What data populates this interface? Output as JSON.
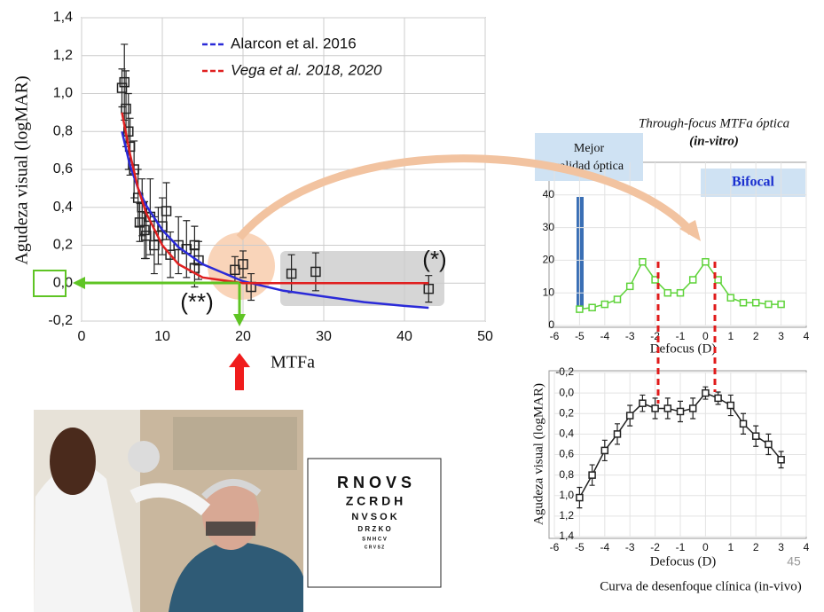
{
  "chart_data": [
    {
      "type": "scatter",
      "y_label": "Agudeza visual (logMAR)",
      "x_label": "MTFa",
      "xlim": [
        0,
        50
      ],
      "xticks": [
        0,
        10,
        20,
        30,
        40,
        50
      ],
      "ylim": [
        -0.2,
        1.4
      ],
      "yticks": [
        {
          "value": 1.4,
          "label": "1,4"
        },
        {
          "value": 1.2,
          "label": "1,2"
        },
        {
          "value": 1,
          "label": "1,0"
        },
        {
          "value": 0.8,
          "label": "0,8"
        },
        {
          "value": 0.6,
          "label": "0,6"
        },
        {
          "value": 0.4,
          "label": "0,4"
        },
        {
          "value": 0.2,
          "label": "0,2"
        },
        {
          "value": 0,
          "label": "0,0"
        },
        {
          "value": -0.2,
          "label": "-0,2"
        }
      ],
      "grid": true,
      "color": "#222",
      "x": [
        5,
        5.3,
        5.5,
        5.8,
        6,
        6.5,
        7,
        7.2,
        7.5,
        7.8,
        8,
        8.5,
        9,
        9.5,
        10,
        10.5,
        11,
        12,
        13,
        14,
        14.5,
        14,
        19,
        20,
        21,
        26,
        29,
        43
      ],
      "values": [
        1.03,
        1.06,
        0.92,
        0.8,
        0.72,
        0.6,
        0.45,
        0.32,
        0.4,
        0.28,
        0.25,
        0.35,
        0.2,
        0.25,
        0.3,
        0.38,
        0.15,
        0.2,
        0.18,
        0.2,
        0.12,
        0.08,
        0.07,
        0.1,
        -0.02,
        0.05,
        0.06,
        -0.03
      ],
      "errors": [
        0.1,
        0.2,
        0.2,
        0.2,
        0.15,
        0.15,
        0.15,
        0.1,
        0.15,
        0.15,
        0.12,
        0.2,
        0.15,
        0.15,
        0.15,
        0.15,
        0.12,
        0.15,
        0.15,
        0.1,
        0.1,
        0.1,
        0.07,
        0.07,
        0.07,
        0.1,
        0.1,
        0.07
      ],
      "fits": {
        "x": [
          5,
          6,
          7,
          8,
          10,
          12,
          15,
          20,
          25,
          30,
          35,
          40,
          43
        ],
        "series": [
          {
            "name": "Alarcon et al. 2016",
            "color": "#2a2ad8",
            "values": [
              0.8,
              0.62,
              0.5,
              0.41,
              0.28,
              0.19,
              0.1,
              0.01,
              -0.04,
              -0.07,
              -0.1,
              -0.12,
              -0.13
            ]
          },
          {
            "name": "Vega et al. 2018, 2020",
            "color": "#e02020",
            "values": [
              0.9,
              0.68,
              0.5,
              0.37,
              0.2,
              0.1,
              0.03,
              0,
              0,
              0,
              0,
              0,
              0
            ]
          }
        ]
      },
      "annotations": [
        "(*)",
        "(**)"
      ]
    },
    {
      "type": "line",
      "title": [
        "Through-focus MTFa óptica",
        "(in-vitro)"
      ],
      "x_label": "Defocus (D)",
      "xlim": [
        -6,
        4
      ],
      "xticks": [
        -6,
        -5,
        -4,
        -3,
        -2,
        -1,
        0,
        1,
        2,
        3,
        4
      ],
      "ylim": [
        0,
        50
      ],
      "yticks": [
        0,
        10,
        20,
        30,
        40
      ],
      "grid": true,
      "color": "#5fd33a",
      "x": [
        -5,
        -4.5,
        -4,
        -3.5,
        -3,
        -2.5,
        -2,
        -1.5,
        -1,
        -0.5,
        0,
        0.5,
        1,
        1.5,
        2,
        2.5,
        3
      ],
      "values": [
        5,
        5.5,
        6.5,
        8,
        12,
        19.5,
        14,
        10,
        10,
        14,
        19.5,
        14,
        8.5,
        7,
        7,
        6.5,
        6.5
      ],
      "annotations": [
        "Mejor",
        "calidad óptica",
        "Bifocal"
      ]
    },
    {
      "type": "line",
      "caption": "Curva de desenfoque clínica (in-vivo)",
      "y_label": "Agudeza visual (logMAR)",
      "x_label": "Defocus (D)",
      "xlim": [
        -6,
        4
      ],
      "xticks": [
        -6,
        -5,
        -4,
        -3,
        -2,
        -1,
        0,
        1,
        2,
        3,
        4
      ],
      "ylim": [
        1.4,
        -0.2
      ],
      "yticks": [
        {
          "value": -0.2,
          "label": "-0,2"
        },
        {
          "value": 0,
          "label": "0,0"
        },
        {
          "value": 0.2,
          "label": "0,2"
        },
        {
          "value": 0.4,
          "label": "0,4"
        },
        {
          "value": 0.6,
          "label": "0,6"
        },
        {
          "value": 0.8,
          "label": "0,8"
        },
        {
          "value": 1,
          "label": "1,0"
        },
        {
          "value": 1.2,
          "label": "1,2"
        },
        {
          "value": 1.4,
          "label": "1,4"
        }
      ],
      "grid": true,
      "color": "#222",
      "x": [
        -5,
        -4.5,
        -4,
        -3.5,
        -3,
        -2.5,
        -2,
        -1.5,
        -1,
        -0.5,
        0,
        0.5,
        1,
        1.5,
        2,
        2.5,
        3
      ],
      "values": [
        1.02,
        0.8,
        0.56,
        0.4,
        0.22,
        0.1,
        0.15,
        0.15,
        0.18,
        0.15,
        0,
        0.05,
        0.12,
        0.3,
        0.42,
        0.5,
        0.65
      ],
      "errors": [
        0.1,
        0.1,
        0.1,
        0.1,
        0.1,
        0.08,
        0.1,
        0.1,
        0.1,
        0.1,
        0.06,
        0.06,
        0.1,
        0.1,
        0.1,
        0.1,
        0.08
      ]
    }
  ],
  "eye_chart": [
    "R N O V S",
    "Z C R D H",
    "N V S O K",
    "D R Z K O",
    "S N H C V",
    "C R V S Z"
  ],
  "page_number": "45"
}
